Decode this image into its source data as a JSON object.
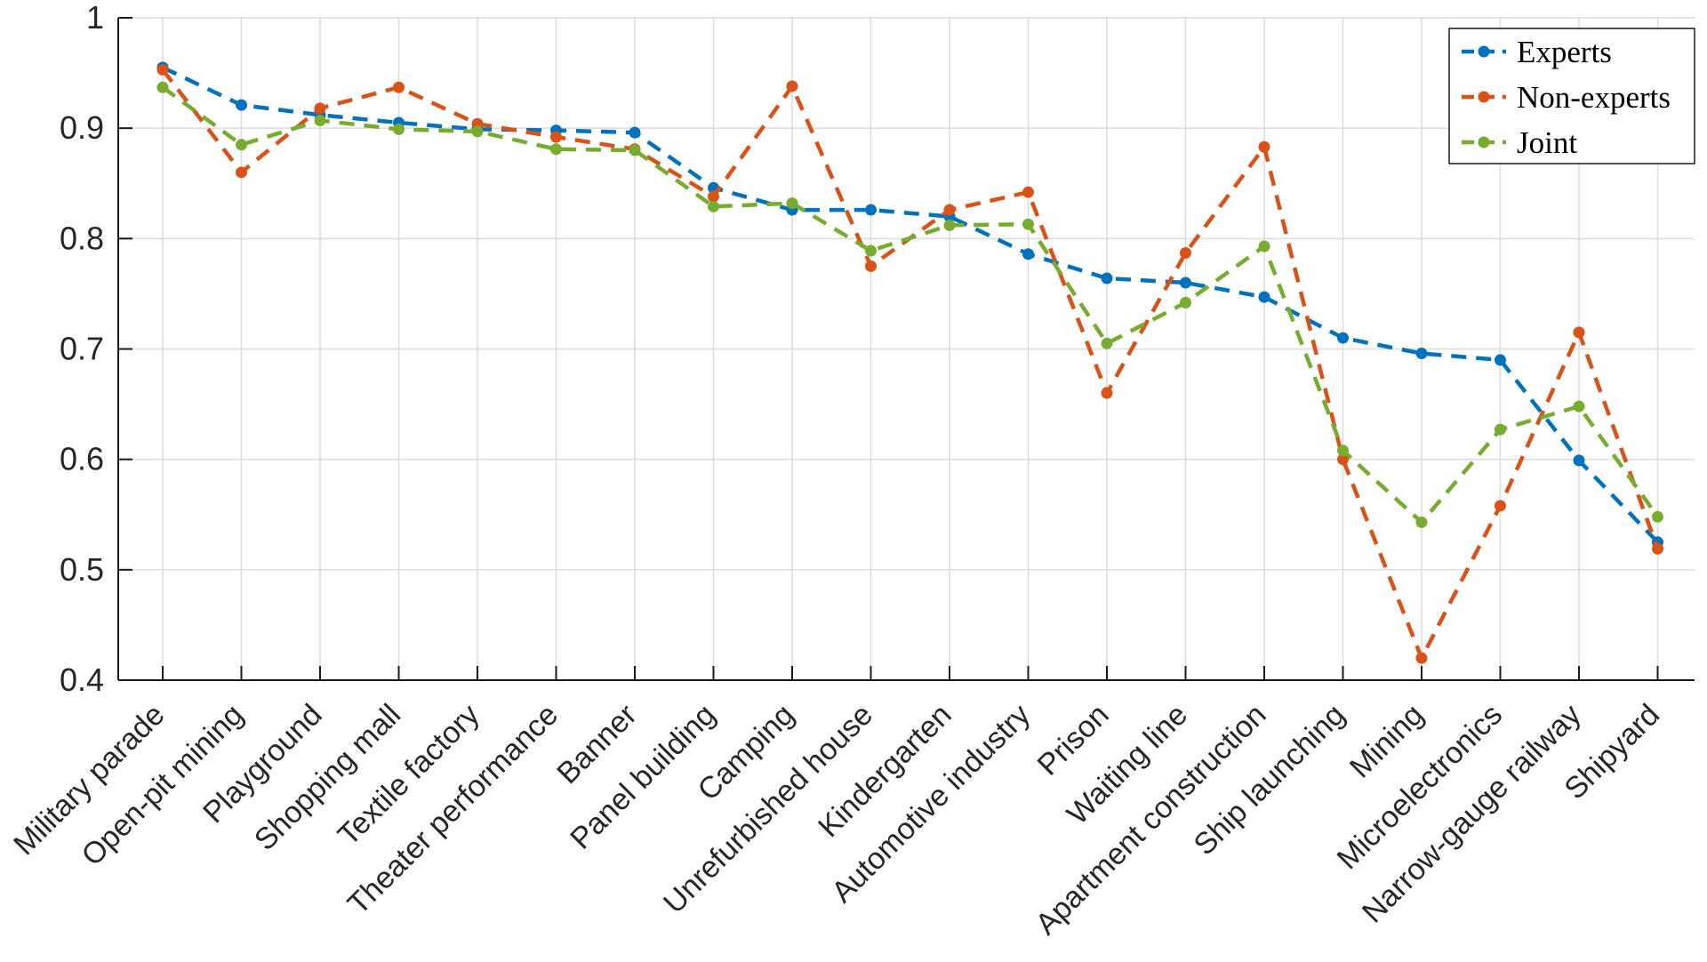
{
  "chart_data": {
    "type": "line",
    "title": "",
    "xlabel": "",
    "ylabel": "",
    "ylim": [
      0.4,
      1.0
    ],
    "yticks": [
      0.4,
      0.5,
      0.6,
      0.7,
      0.8,
      0.9,
      1.0
    ],
    "ytick_labels": [
      "0.4",
      "0.5",
      "0.6",
      "0.7",
      "0.8",
      "0.9",
      "1"
    ],
    "grid": true,
    "legend_position": "top-right",
    "line_style": "dashed",
    "marker": "circle",
    "x_label_rotation_deg": 45,
    "axis_color": "#1a1a1a",
    "grid_color": "#dcdcdc",
    "background_color": "#ffffff",
    "categories": [
      "Military parade",
      "Open-pit mining",
      "Playground",
      "Shopping mall",
      "Textile factory",
      "Theater performance",
      "Banner",
      "Panel building",
      "Camping",
      "Unrefurbished house",
      "Kindergarten",
      "Automotive industry",
      "Prison",
      "Waiting line",
      "Apartment construction",
      "Ship launching",
      "Mining",
      "Microelectronics",
      "Narrow-gauge railway",
      "Shipyard"
    ],
    "series": [
      {
        "name": "Experts",
        "color": "#0072BD",
        "values": [
          0.955,
          0.921,
          0.912,
          0.905,
          0.899,
          0.898,
          0.896,
          0.846,
          0.826,
          0.826,
          0.82,
          0.786,
          0.764,
          0.76,
          0.747,
          0.71,
          0.696,
          0.69,
          0.599,
          0.525
        ]
      },
      {
        "name": "Non-experts",
        "color": "#D95319",
        "values": [
          0.953,
          0.86,
          0.918,
          0.937,
          0.904,
          0.892,
          0.881,
          0.838,
          0.938,
          0.775,
          0.826,
          0.842,
          0.66,
          0.787,
          0.883,
          0.6,
          0.42,
          0.558,
          0.715,
          0.519
        ]
      },
      {
        "name": "Joint",
        "color": "#77AC30",
        "values": [
          0.937,
          0.885,
          0.907,
          0.899,
          0.897,
          0.881,
          0.88,
          0.829,
          0.832,
          0.789,
          0.812,
          0.813,
          0.705,
          0.742,
          0.793,
          0.608,
          0.543,
          0.627,
          0.648,
          0.548
        ]
      }
    ],
    "legend_entries": [
      "Experts",
      "Non-experts",
      "Joint"
    ]
  }
}
